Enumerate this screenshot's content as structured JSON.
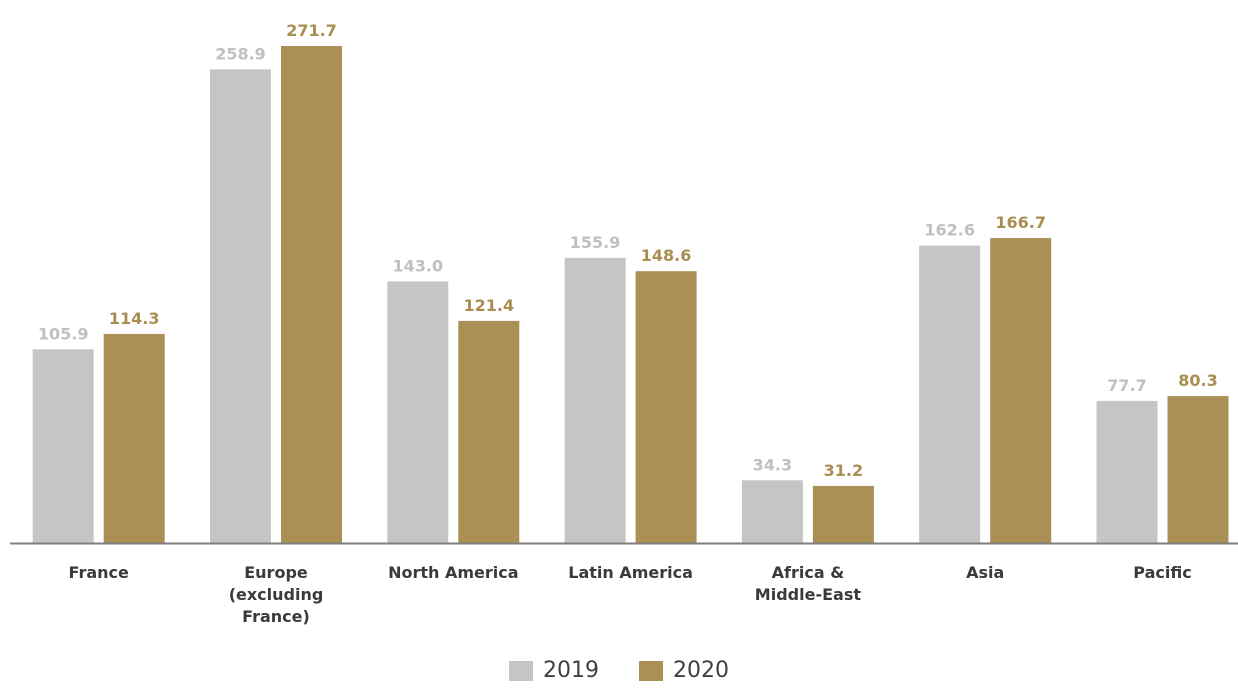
{
  "chart_data": {
    "type": "bar",
    "categories": [
      [
        "France"
      ],
      [
        "Europe",
        "(excluding",
        "France)"
      ],
      [
        "North America"
      ],
      [
        "Latin America"
      ],
      [
        "Africa &",
        "Middle-East"
      ],
      [
        "Asia"
      ],
      [
        "Pacific"
      ]
    ],
    "series": [
      {
        "name": "2019",
        "color": "#c5c5c5",
        "label_color": "#c0c0c0",
        "values": [
          105.9,
          258.9,
          143.0,
          155.9,
          34.3,
          162.6,
          77.7
        ],
        "labels": [
          "105.9",
          "258.9",
          "143.0",
          "155.9",
          "34.3",
          "162.6",
          "77.7"
        ]
      },
      {
        "name": "2020",
        "color": "#aa9054",
        "label_color": "#a88e50",
        "values": [
          114.3,
          271.7,
          121.4,
          148.6,
          31.2,
          166.7,
          80.3
        ],
        "labels": [
          "114.3",
          "271.7",
          "121.4",
          "148.6",
          "31.2",
          "166.7",
          "80.3"
        ]
      }
    ],
    "ylim": [
      0,
      271.7
    ],
    "grid": false,
    "legend_position": "bottom-center",
    "axis_color": "#7f7f7f"
  },
  "legend": {
    "items": [
      {
        "label": "2019",
        "color": "#c5c5c5"
      },
      {
        "label": "2020",
        "color": "#aa9054"
      }
    ]
  }
}
